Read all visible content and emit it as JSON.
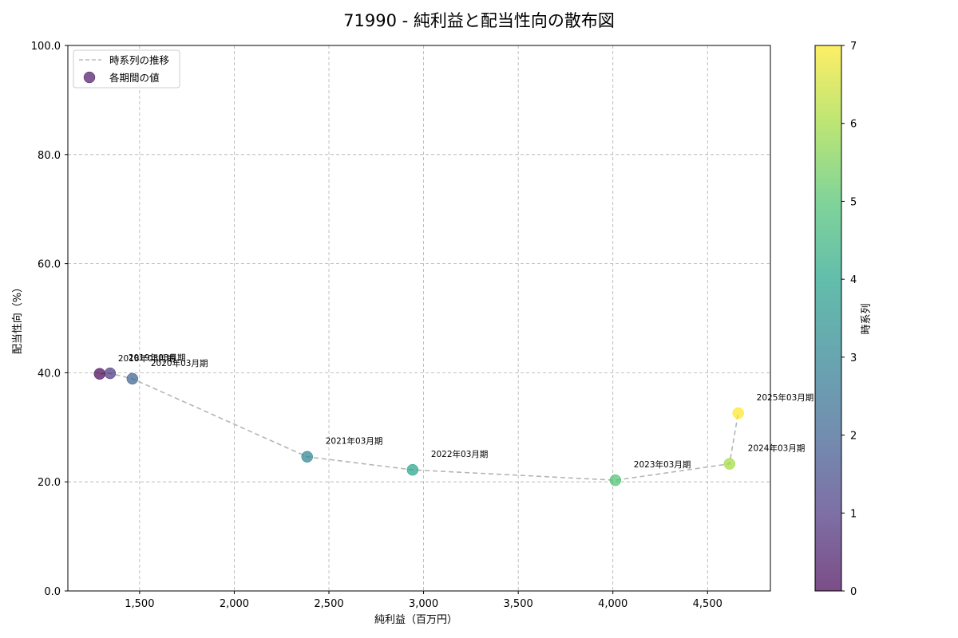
{
  "chart_data": {
    "type": "scatter",
    "title": "71990 - 純利益と配当性向の散布図",
    "xlabel": "純利益（百万円）",
    "ylabel": "配当性向（%）",
    "xlim": [
      1121,
      4832
    ],
    "ylim": [
      0,
      100
    ],
    "xticks": [
      1500,
      2000,
      2500,
      3000,
      3500,
      4000,
      4500
    ],
    "xtick_labels": [
      "1,500",
      "2,000",
      "2,500",
      "3,000",
      "3,500",
      "4,000",
      "4,500"
    ],
    "yticks": [
      0,
      20,
      40,
      60,
      80,
      100
    ],
    "ytick_labels": [
      "0.0",
      "20.0",
      "40.0",
      "60.0",
      "80.0",
      "100.0"
    ],
    "grid": true,
    "legend_position": "upper left",
    "legend": [
      {
        "label": "時系列の推移",
        "style": "dashed-line",
        "color": "#bbbbbb"
      },
      {
        "label": "各期間の値",
        "style": "marker",
        "color": "#6a3d7f"
      }
    ],
    "colorbar": {
      "label": "時系列",
      "range": [
        0,
        7
      ],
      "ticks": [
        "0",
        "1",
        "2",
        "3",
        "4",
        "5",
        "6",
        "7"
      ],
      "colormap": "viridis"
    },
    "points": [
      {
        "label": "2018年03月期",
        "x": 1289,
        "y": 39.8,
        "t": 0
      },
      {
        "label": "2019年03月期",
        "x": 1344,
        "y": 39.9,
        "t": 1
      },
      {
        "label": "2020年03月期",
        "x": 1462,
        "y": 38.9,
        "t": 2
      },
      {
        "label": "2021年03月期",
        "x": 2385,
        "y": 24.6,
        "t": 3
      },
      {
        "label": "2022年03月期",
        "x": 2942,
        "y": 22.2,
        "t": 4
      },
      {
        "label": "2023年03月期",
        "x": 4013,
        "y": 20.3,
        "t": 5
      },
      {
        "label": "2024年03月期",
        "x": 4616,
        "y": 23.3,
        "t": 6
      },
      {
        "label": "2025年03月期",
        "x": 4662,
        "y": 32.6,
        "t": 7
      }
    ]
  }
}
